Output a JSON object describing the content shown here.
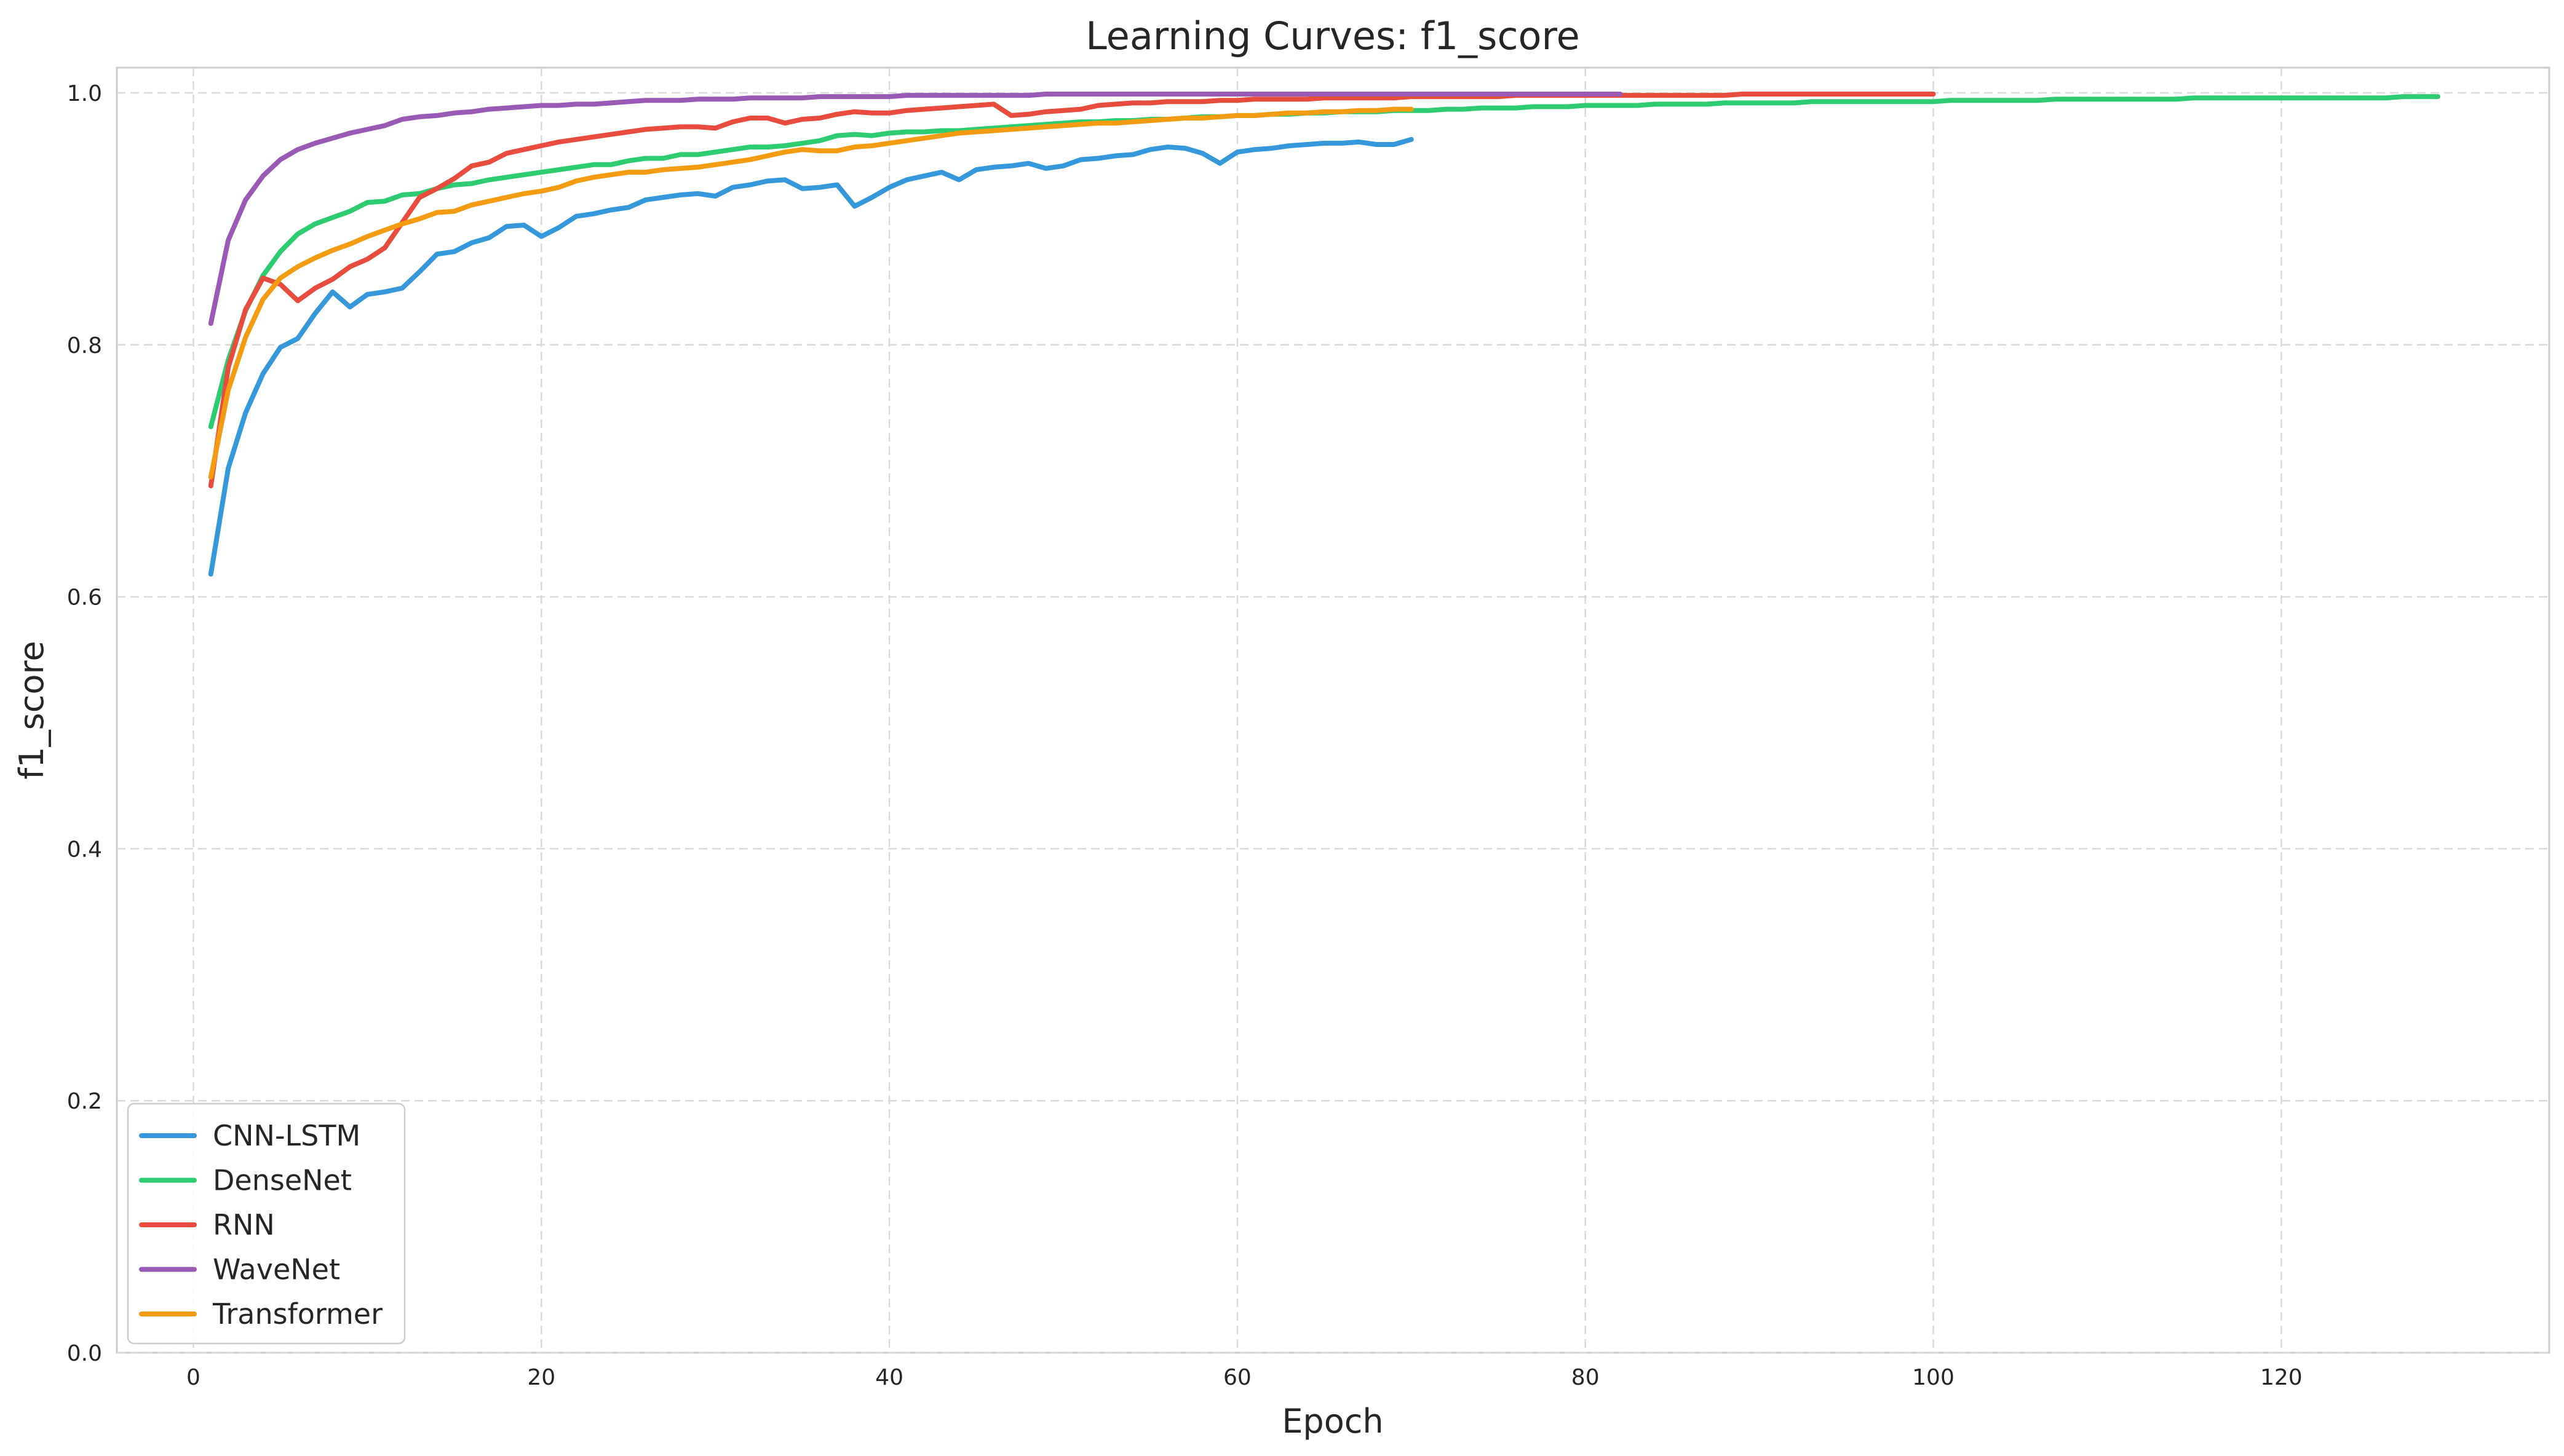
{
  "chart_data": {
    "type": "line",
    "title": "Learning Curves: f1_score",
    "xlabel": "Epoch",
    "ylabel": "f1_score",
    "xlim": [
      -4.4,
      135.4
    ],
    "ylim": [
      0.0,
      1.02
    ],
    "xticks": [
      0,
      20,
      40,
      60,
      80,
      100,
      120
    ],
    "yticks": [
      0.0,
      0.2,
      0.4,
      0.6,
      0.8,
      1.0
    ],
    "ytick_labels": [
      "0.0",
      "0.2",
      "0.4",
      "0.6",
      "0.8",
      "1.0"
    ],
    "grid": true,
    "legend_position": "lower-left",
    "series": [
      {
        "name": "CNN-LSTM",
        "color": "#3498db",
        "x": [
          1,
          2,
          3,
          4,
          5,
          6,
          7,
          8,
          9,
          10,
          11,
          12,
          13,
          14,
          15,
          16,
          17,
          18,
          19,
          20,
          21,
          22,
          23,
          24,
          25,
          26,
          27,
          28,
          29,
          30,
          31,
          32,
          33,
          34,
          35,
          36,
          37,
          38,
          39,
          40,
          41,
          42,
          43,
          44,
          45,
          46,
          47,
          48,
          49,
          50,
          51,
          52,
          53,
          54,
          55,
          56,
          57,
          58,
          59,
          60,
          61,
          62,
          63,
          64,
          65,
          66,
          67,
          68,
          69,
          70
        ],
        "y": [
          0.618,
          0.702,
          0.746,
          0.777,
          0.798,
          0.805,
          0.825,
          0.842,
          0.83,
          0.84,
          0.842,
          0.845,
          0.858,
          0.872,
          0.874,
          0.881,
          0.885,
          0.894,
          0.895,
          0.886,
          0.893,
          0.902,
          0.904,
          0.907,
          0.909,
          0.915,
          0.917,
          0.919,
          0.92,
          0.918,
          0.925,
          0.927,
          0.93,
          0.931,
          0.924,
          0.925,
          0.927,
          0.91,
          0.917,
          0.925,
          0.931,
          0.934,
          0.937,
          0.931,
          0.939,
          0.941,
          0.942,
          0.944,
          0.94,
          0.942,
          0.947,
          0.948,
          0.95,
          0.951,
          0.955,
          0.957,
          0.956,
          0.952,
          0.944,
          0.953,
          0.955,
          0.956,
          0.958,
          0.959,
          0.96,
          0.96,
          0.961,
          0.959,
          0.959,
          0.963
        ]
      },
      {
        "name": "DenseNet",
        "color": "#2ecc71",
        "x": [
          1,
          2,
          3,
          4,
          5,
          6,
          7,
          8,
          9,
          10,
          11,
          12,
          13,
          14,
          15,
          16,
          17,
          18,
          19,
          20,
          21,
          22,
          23,
          24,
          25,
          26,
          27,
          28,
          29,
          30,
          31,
          32,
          33,
          34,
          35,
          36,
          37,
          38,
          39,
          40,
          41,
          42,
          43,
          44,
          45,
          46,
          47,
          48,
          49,
          50,
          51,
          52,
          53,
          54,
          55,
          56,
          57,
          58,
          59,
          60,
          61,
          62,
          63,
          64,
          65,
          66,
          67,
          68,
          69,
          70,
          71,
          72,
          73,
          74,
          75,
          76,
          77,
          78,
          79,
          80,
          81,
          82,
          83,
          84,
          85,
          86,
          87,
          88,
          89,
          90,
          91,
          92,
          93,
          94,
          95,
          96,
          97,
          98,
          99,
          100,
          101,
          102,
          103,
          104,
          105,
          106,
          107,
          108,
          109,
          110,
          111,
          112,
          113,
          114,
          115,
          116,
          117,
          118,
          119,
          120,
          121,
          122,
          123,
          124,
          125,
          126,
          127,
          128,
          129
        ],
        "y": [
          0.735,
          0.788,
          0.827,
          0.855,
          0.874,
          0.888,
          0.896,
          0.901,
          0.906,
          0.913,
          0.914,
          0.919,
          0.92,
          0.924,
          0.927,
          0.928,
          0.931,
          0.933,
          0.935,
          0.937,
          0.939,
          0.941,
          0.943,
          0.943,
          0.946,
          0.948,
          0.948,
          0.951,
          0.951,
          0.953,
          0.955,
          0.957,
          0.957,
          0.958,
          0.96,
          0.962,
          0.966,
          0.967,
          0.966,
          0.968,
          0.969,
          0.969,
          0.97,
          0.97,
          0.971,
          0.972,
          0.973,
          0.974,
          0.975,
          0.976,
          0.977,
          0.977,
          0.978,
          0.978,
          0.979,
          0.979,
          0.98,
          0.981,
          0.981,
          0.982,
          0.982,
          0.983,
          0.983,
          0.984,
          0.984,
          0.985,
          0.985,
          0.985,
          0.986,
          0.986,
          0.986,
          0.987,
          0.987,
          0.988,
          0.988,
          0.988,
          0.989,
          0.989,
          0.989,
          0.99,
          0.99,
          0.99,
          0.99,
          0.991,
          0.991,
          0.991,
          0.991,
          0.992,
          0.992,
          0.992,
          0.992,
          0.992,
          0.993,
          0.993,
          0.993,
          0.993,
          0.993,
          0.993,
          0.993,
          0.993,
          0.994,
          0.994,
          0.994,
          0.994,
          0.994,
          0.994,
          0.995,
          0.995,
          0.995,
          0.995,
          0.995,
          0.995,
          0.995,
          0.995,
          0.996,
          0.996,
          0.996,
          0.996,
          0.996,
          0.996,
          0.996,
          0.996,
          0.996,
          0.996,
          0.996,
          0.996,
          0.997,
          0.997,
          0.997
        ]
      },
      {
        "name": "RNN",
        "color": "#e74c3c",
        "x": [
          1,
          2,
          3,
          4,
          5,
          6,
          7,
          8,
          9,
          10,
          11,
          12,
          13,
          14,
          15,
          16,
          17,
          18,
          19,
          20,
          21,
          22,
          23,
          24,
          25,
          26,
          27,
          28,
          29,
          30,
          31,
          32,
          33,
          34,
          35,
          36,
          37,
          38,
          39,
          40,
          41,
          42,
          43,
          44,
          45,
          46,
          47,
          48,
          49,
          50,
          51,
          52,
          53,
          54,
          55,
          56,
          57,
          58,
          59,
          60,
          61,
          62,
          63,
          64,
          65,
          66,
          67,
          68,
          69,
          70,
          71,
          72,
          73,
          74,
          75,
          76,
          77,
          78,
          79,
          80,
          81,
          82,
          83,
          84,
          85,
          86,
          87,
          88,
          89,
          90,
          91,
          92,
          93,
          94,
          95,
          96,
          97,
          98,
          99,
          100
        ],
        "y": [
          0.688,
          0.782,
          0.828,
          0.853,
          0.848,
          0.835,
          0.845,
          0.852,
          0.862,
          0.868,
          0.877,
          0.897,
          0.917,
          0.924,
          0.932,
          0.942,
          0.945,
          0.952,
          0.955,
          0.958,
          0.961,
          0.963,
          0.965,
          0.967,
          0.969,
          0.971,
          0.972,
          0.973,
          0.973,
          0.972,
          0.977,
          0.98,
          0.98,
          0.976,
          0.979,
          0.98,
          0.983,
          0.985,
          0.984,
          0.984,
          0.986,
          0.987,
          0.988,
          0.989,
          0.99,
          0.991,
          0.982,
          0.983,
          0.985,
          0.986,
          0.987,
          0.99,
          0.991,
          0.992,
          0.992,
          0.993,
          0.993,
          0.993,
          0.994,
          0.994,
          0.995,
          0.995,
          0.995,
          0.995,
          0.996,
          0.996,
          0.996,
          0.996,
          0.996,
          0.997,
          0.997,
          0.997,
          0.997,
          0.997,
          0.997,
          0.998,
          0.998,
          0.998,
          0.998,
          0.998,
          0.998,
          0.998,
          0.998,
          0.998,
          0.998,
          0.998,
          0.998,
          0.998,
          0.999,
          0.999,
          0.999,
          0.999,
          0.999,
          0.999,
          0.999,
          0.999,
          0.999,
          0.999,
          0.999,
          0.999
        ]
      },
      {
        "name": "WaveNet",
        "color": "#9b59b6",
        "x": [
          1,
          2,
          3,
          4,
          5,
          6,
          7,
          8,
          9,
          10,
          11,
          12,
          13,
          14,
          15,
          16,
          17,
          18,
          19,
          20,
          21,
          22,
          23,
          24,
          25,
          26,
          27,
          28,
          29,
          30,
          31,
          32,
          33,
          34,
          35,
          36,
          37,
          38,
          39,
          40,
          41,
          42,
          43,
          44,
          45,
          46,
          47,
          48,
          49,
          50,
          51,
          52,
          53,
          54,
          55,
          56,
          57,
          58,
          59,
          60,
          61,
          62,
          63,
          64,
          65,
          66,
          67,
          68,
          69,
          70,
          71,
          72,
          73,
          74,
          75,
          76,
          77,
          78,
          79,
          80,
          81,
          82
        ],
        "y": [
          0.817,
          0.883,
          0.915,
          0.934,
          0.947,
          0.955,
          0.96,
          0.964,
          0.968,
          0.971,
          0.974,
          0.979,
          0.981,
          0.982,
          0.984,
          0.985,
          0.987,
          0.988,
          0.989,
          0.99,
          0.99,
          0.991,
          0.991,
          0.992,
          0.993,
          0.994,
          0.994,
          0.994,
          0.995,
          0.995,
          0.995,
          0.996,
          0.996,
          0.996,
          0.996,
          0.997,
          0.997,
          0.997,
          0.997,
          0.997,
          0.998,
          0.998,
          0.998,
          0.998,
          0.998,
          0.998,
          0.998,
          0.998,
          0.999,
          0.999,
          0.999,
          0.999,
          0.999,
          0.999,
          0.999,
          0.999,
          0.999,
          0.999,
          0.999,
          0.999,
          0.999,
          0.999,
          0.999,
          0.999,
          0.999,
          0.999,
          0.999,
          0.999,
          0.999,
          0.999,
          0.999,
          0.999,
          0.999,
          0.999,
          0.999,
          0.999,
          0.999,
          0.999,
          0.999,
          0.999,
          0.999,
          0.999
        ]
      },
      {
        "name": "Transformer",
        "color": "#f39c12",
        "x": [
          1,
          2,
          3,
          4,
          5,
          6,
          7,
          8,
          9,
          10,
          11,
          12,
          13,
          14,
          15,
          16,
          17,
          18,
          19,
          20,
          21,
          22,
          23,
          24,
          25,
          26,
          27,
          28,
          29,
          30,
          31,
          32,
          33,
          34,
          35,
          36,
          37,
          38,
          39,
          40,
          41,
          42,
          43,
          44,
          45,
          46,
          47,
          48,
          49,
          50,
          51,
          52,
          53,
          54,
          55,
          56,
          57,
          58,
          59,
          60,
          61,
          62,
          63,
          64,
          65,
          66,
          67,
          68,
          69,
          70
        ],
        "y": [
          0.695,
          0.764,
          0.806,
          0.836,
          0.853,
          0.862,
          0.869,
          0.875,
          0.88,
          0.886,
          0.891,
          0.896,
          0.9,
          0.905,
          0.906,
          0.911,
          0.914,
          0.917,
          0.92,
          0.922,
          0.925,
          0.93,
          0.933,
          0.935,
          0.937,
          0.937,
          0.939,
          0.94,
          0.941,
          0.943,
          0.945,
          0.947,
          0.95,
          0.953,
          0.955,
          0.954,
          0.954,
          0.957,
          0.958,
          0.96,
          0.962,
          0.964,
          0.966,
          0.968,
          0.969,
          0.97,
          0.971,
          0.972,
          0.973,
          0.974,
          0.975,
          0.976,
          0.976,
          0.977,
          0.978,
          0.979,
          0.98,
          0.98,
          0.981,
          0.982,
          0.982,
          0.983,
          0.984,
          0.984,
          0.985,
          0.985,
          0.986,
          0.986,
          0.987,
          0.987
        ]
      }
    ]
  }
}
